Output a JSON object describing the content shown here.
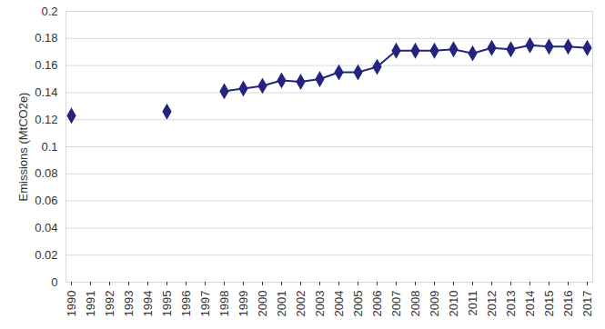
{
  "chart_data": {
    "type": "line",
    "y_label": "Emissions (MtCO2e)",
    "categories": [
      "1990",
      "1991",
      "1992",
      "1993",
      "1994",
      "1995",
      "1996",
      "1997",
      "1998",
      "1999",
      "2000",
      "2001",
      "2002",
      "2003",
      "2004",
      "2005",
      "2006",
      "2007",
      "2008",
      "2009",
      "2010",
      "2011",
      "2012",
      "2013",
      "2014",
      "2015",
      "2016",
      "2017"
    ],
    "values": [
      0.123,
      null,
      null,
      null,
      null,
      0.126,
      null,
      null,
      0.141,
      0.143,
      0.145,
      0.149,
      0.148,
      0.15,
      0.155,
      0.155,
      0.159,
      0.171,
      0.171,
      0.171,
      0.172,
      0.169,
      0.173,
      0.172,
      0.175,
      0.174,
      0.174,
      0.173
    ],
    "color": "#24247f",
    "marker": "diamond",
    "ylim": [
      0,
      0.2
    ],
    "yticks": [
      0,
      0.02,
      0.04,
      0.06,
      0.08,
      0.1,
      0.12,
      0.14,
      0.16,
      0.18,
      0.2
    ],
    "grid": true
  }
}
